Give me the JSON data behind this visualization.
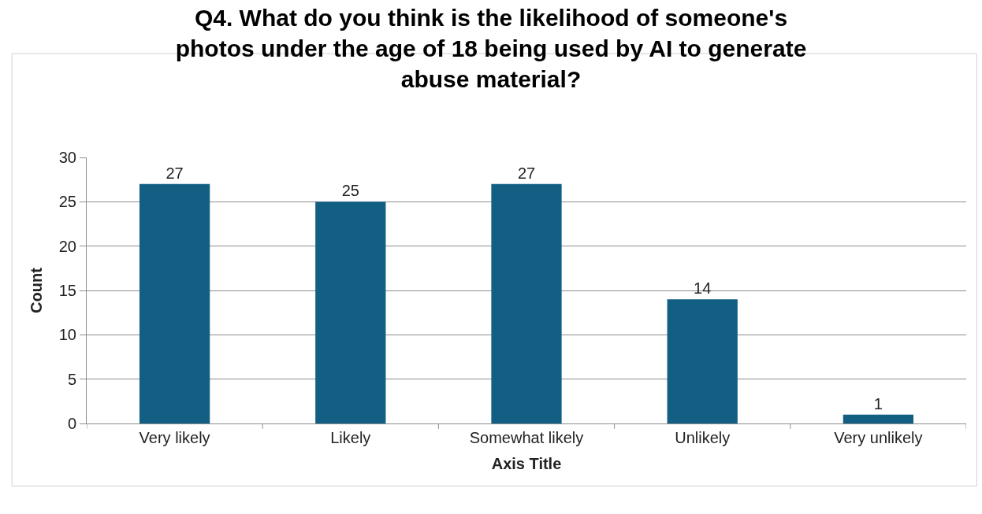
{
  "chart_data": {
    "type": "bar",
    "title": "Q4. What do you think is the likelihood of someone's photos under the age of 18 being used by AI to generate abuse material?",
    "xlabel": "Axis Title",
    "ylabel": "Count",
    "categories": [
      "Very likely",
      "Likely",
      "Somewhat likely",
      "Unlikely",
      "Very unlikely"
    ],
    "values": [
      27,
      25,
      27,
      14,
      1
    ],
    "color": "#135f84",
    "ylim": [
      0,
      30
    ],
    "yticks": [
      0,
      5,
      10,
      15,
      20,
      25,
      30
    ],
    "grid": "y",
    "data_labels": true
  }
}
